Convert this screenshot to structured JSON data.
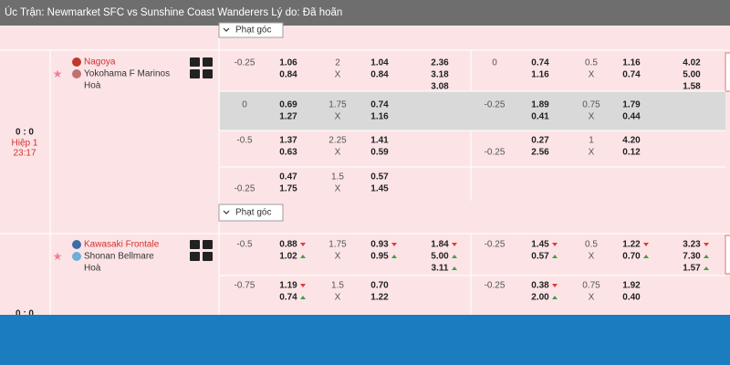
{
  "header": {
    "title": "Úc Trận: Newmarket SFC vs Sunshine Coast Wanderers Lý do: Đã hoãn"
  },
  "corner_buttons": [
    "Phạt góc",
    "Phạt góc"
  ],
  "matches": [
    {
      "score": "0 : 0",
      "period": "Hiệp 1",
      "time": "23:17",
      "home": "Nagoya",
      "away": "Yokohama F Marinos",
      "draw": "Hoà",
      "highlighted_row": 1,
      "rows": [
        [
          [
            "-0.25"
          ],
          [
            "1.06",
            "0.84"
          ],
          [
            "2",
            "X"
          ],
          [
            "1.04",
            "0.84"
          ],
          [
            "2.36",
            "3.18",
            "3.08"
          ],
          [
            "0"
          ],
          [
            "0.74",
            "1.16"
          ],
          [
            "0.5",
            "X"
          ],
          [
            "1.16",
            "0.74"
          ],
          [
            "4.02",
            "5.00",
            "1.58"
          ]
        ],
        [
          [
            "0"
          ],
          [
            "0.69",
            "1.27"
          ],
          [
            "1.75",
            "X"
          ],
          [
            "0.74",
            "1.16"
          ],
          [],
          [
            "-0.25"
          ],
          [
            "1.89",
            "0.41"
          ],
          [
            "0.75",
            "X"
          ],
          [
            "1.79",
            "0.44"
          ],
          []
        ],
        [
          [
            "-0.5"
          ],
          [
            "1.37",
            "0.63"
          ],
          [
            "2.25",
            "X"
          ],
          [
            "1.41",
            "0.59"
          ],
          [],
          [
            null,
            "-0.25"
          ],
          [
            "0.27",
            "2.56"
          ],
          [
            "1",
            "X"
          ],
          [
            "4.20",
            "0.12"
          ],
          []
        ],
        [
          [
            null,
            "-0.25"
          ],
          [
            "0.47",
            "1.75"
          ],
          [
            "1.5",
            "X"
          ],
          [
            "0.57",
            "1.45"
          ],
          [],
          [],
          [],
          [],
          [],
          []
        ]
      ]
    },
    {
      "score": "0 : 0",
      "home": "Kawasaki Frontale",
      "away": "Shonan Bellmare",
      "draw": "Hoà",
      "rows": [
        [
          [
            "-0.5"
          ],
          [
            "0.88",
            "1.02"
          ],
          [
            "1.75",
            "X"
          ],
          [
            "0.93",
            "0.95"
          ],
          [
            "1.84",
            "5.00",
            "3.11"
          ],
          [
            "-0.25"
          ],
          [
            "1.45",
            "0.57"
          ],
          [
            "0.5",
            "X"
          ],
          [
            "1.22",
            "0.70"
          ],
          [
            "3.23",
            "7.30",
            "1.57"
          ]
        ],
        [
          [
            "-0.75"
          ],
          [
            "1.19",
            "0.74"
          ],
          [
            "1.5",
            "X"
          ],
          [
            "0.70",
            "1.22"
          ],
          [],
          [
            "-0.25"
          ],
          [
            "0.38",
            "2.00"
          ],
          [
            "0.75",
            "X"
          ],
          [
            "1.92",
            "0.40"
          ],
          []
        ]
      ],
      "moves": [
        [
          [],
          [
            "down",
            "up"
          ],
          [],
          [
            "down",
            "up"
          ],
          [
            "down",
            "up",
            "up"
          ],
          [],
          [
            "down",
            "up"
          ],
          [],
          [
            "down",
            "up"
          ],
          [
            "down",
            "up",
            "up"
          ]
        ],
        [
          [],
          [
            "down",
            "up"
          ],
          [],
          [],
          [],
          [],
          [
            "down",
            "up"
          ],
          [],
          [],
          []
        ]
      ]
    }
  ]
}
